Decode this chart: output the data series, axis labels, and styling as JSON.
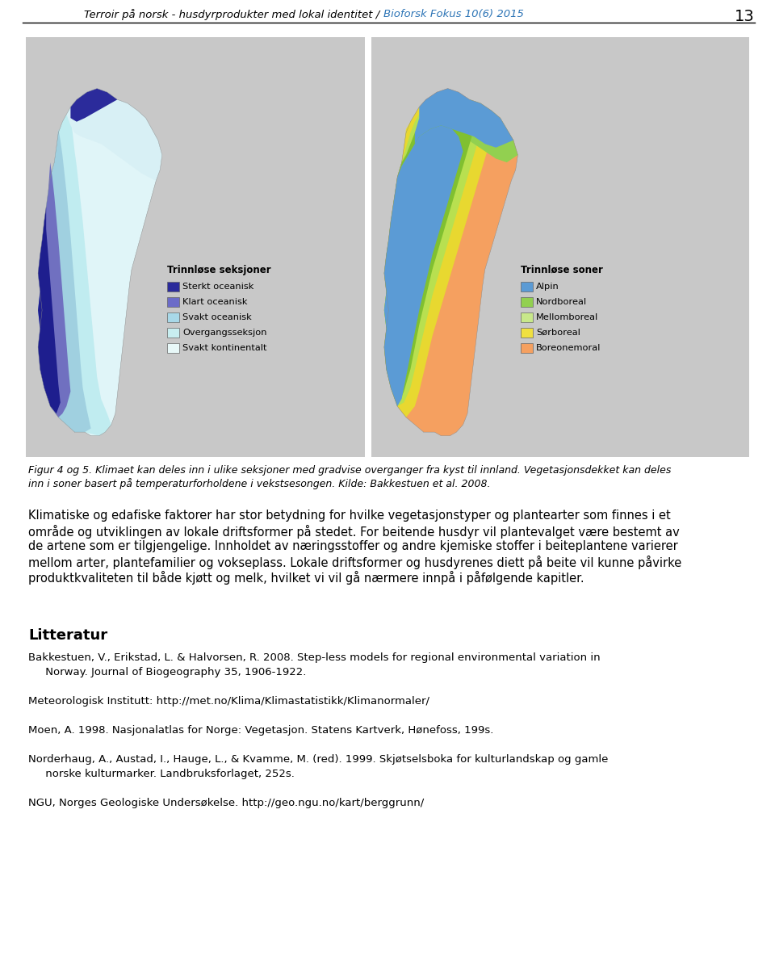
{
  "header_text_part1": "Terroir på norsk - husdyrprodukter med lokal identitet / ",
  "header_text_part2": "Bioforsk Fokus 10(6) 2015",
  "page_number": "13",
  "figure_caption_line1": "Figur 4 og 5. Klimaet kan deles inn i ulike seksjoner med gradvise overganger fra kyst til innland. Vegetasjonsdekket kan deles",
  "figure_caption_line2": "inn i soner basert på temperaturforholdene i vekstsesongen. Kilde: Bakkestuen et al. 2008.",
  "body_text_lines": [
    "Klimatiske og edafiske faktorer har stor betydning for hvilke vegetasjonstyper og plantearter som finnes i et",
    "område og utviklingen av lokale driftsformer på stedet. For beitende husdyr vil plantevalget være bestemt av",
    "de artene som er tilgjengelige. Innholdet av næringsstoffer og andre kjemiske stoffer i beiteplantene varierer",
    "mellom arter, plantefamilier og vokseplass. Lokale driftsformer og husdyrenes diett på beite vil kunne påvirke",
    "produktkvaliteten til både kjøtt og melk, hvilket vi vil gå nærmere innpå i påfølgende kapitler."
  ],
  "litteratur_header": "Litteratur",
  "refs": [
    {
      "text": "Bakkestuen, V., Erikstad, L. & Halvorsen, R. 2008. Step-less models for regional environmental variation in",
      "indent": false
    },
    {
      "text": "     Norway. Journal of Biogeography 35, 1906-1922.",
      "indent": false
    },
    {
      "text": "",
      "indent": false
    },
    {
      "text": "Meteorologisk Institutt: http://met.no/Klima/Klimastatistikk/Klimanormaler/",
      "indent": false
    },
    {
      "text": "",
      "indent": false
    },
    {
      "text": "Moen, A. 1998. Nasjonalatlas for Norge: Vegetasjon. Statens Kartverk, Hønefoss, 199s.",
      "indent": false
    },
    {
      "text": "",
      "indent": false
    },
    {
      "text": "Norderhaug, A., Austad, I., Hauge, L., & Kvamme, M. (red). 1999. Skjøtselsboka for kulturlandskap og gamle",
      "indent": false
    },
    {
      "text": "     norske kulturmarker. Landbruksforlaget, 252s.",
      "indent": false
    },
    {
      "text": "",
      "indent": false
    },
    {
      "text": "NGU, Norges Geologiske Undersøkelse. http://geo.ngu.no/kart/berggrunn/",
      "indent": false
    }
  ],
  "bg_color": "#ffffff",
  "header_color": "#000000",
  "header_bioforsk_color": "#2e75b6",
  "map_bg_color": "#c8c8c8",
  "left_legend_title": "Trinnløse seksjoner",
  "left_legend_items": [
    {
      "label": "Sterkt oceanisk",
      "color": "#2B2B9B"
    },
    {
      "label": "Klart oceanisk",
      "color": "#6B6BC8"
    },
    {
      "label": "Svakt oceanisk",
      "color": "#A8D8E8"
    },
    {
      "label": "Overgangsseksjon",
      "color": "#C8EEF0"
    },
    {
      "label": "Svakt kontinentalt",
      "color": "#E8F8F8"
    }
  ],
  "right_legend_title": "Trinnløse soner",
  "right_legend_items": [
    {
      "label": "Alpin",
      "color": "#5B9BD5"
    },
    {
      "label": "Nordboreal",
      "color": "#92D050"
    },
    {
      "label": "Mellomboreal",
      "color": "#C8E88A"
    },
    {
      "label": "Sørboreal",
      "color": "#F0E040"
    },
    {
      "label": "Boreonemoral",
      "color": "#F5A060"
    }
  ]
}
